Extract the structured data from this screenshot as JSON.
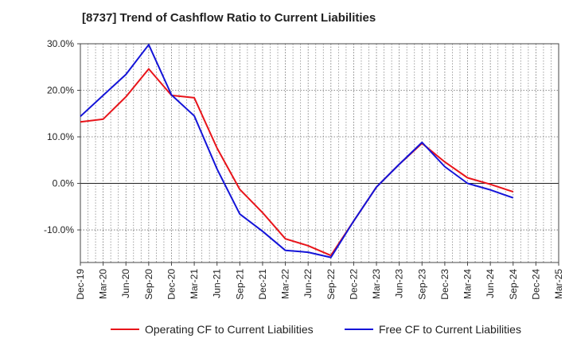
{
  "chart_data": {
    "type": "line",
    "title": "[8737]  Trend of Cashflow Ratio to Current Liabilities",
    "xlabel": "",
    "ylabel": "",
    "x": [
      "Dec-19",
      "Mar-20",
      "Jun-20",
      "Sep-20",
      "Dec-20",
      "Mar-21",
      "Jun-21",
      "Sep-21",
      "Dec-21",
      "Mar-22",
      "Jun-22",
      "Sep-22",
      "Dec-22",
      "Mar-23",
      "Jun-23",
      "Sep-23",
      "Dec-23",
      "Mar-24",
      "Jun-24",
      "Sep-24",
      "Dec-24",
      "Mar-25"
    ],
    "ylim": [
      -17,
      30
    ],
    "yticks": [
      30,
      20,
      10,
      0,
      -10
    ],
    "ytick_labels": [
      "30.0%",
      "20.0%",
      "10.0%",
      "0.0%",
      "-10.0%"
    ],
    "grid": true,
    "legend_position": "bottom",
    "series": [
      {
        "name": "Operating CF to Current Liabilities",
        "color": "#e8141a",
        "values": [
          13.2,
          13.8,
          18.6,
          24.6,
          18.9,
          18.4,
          7.6,
          -1.3,
          -6.3,
          -11.9,
          -13.4,
          -15.5,
          -8.1,
          -0.8,
          4.1,
          8.6,
          4.6,
          1.2,
          -0.2,
          -1.8,
          null,
          null
        ]
      },
      {
        "name": "Free CF to Current Liabilities",
        "color": "#1414d8",
        "values": [
          14.4,
          18.9,
          23.4,
          29.8,
          19.0,
          14.5,
          3.1,
          -6.6,
          -10.3,
          -14.4,
          -14.8,
          -15.9,
          -8.1,
          -0.8,
          4.1,
          8.8,
          3.6,
          0.0,
          -1.4,
          -3.1,
          null,
          null
        ]
      }
    ]
  }
}
